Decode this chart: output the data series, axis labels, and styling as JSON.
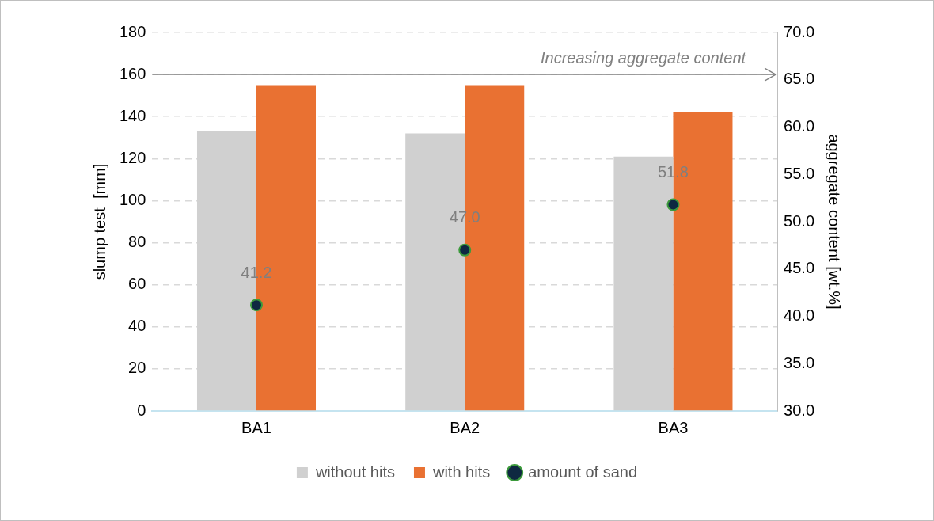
{
  "chart_data": {
    "type": "bar",
    "categories": [
      "BA1",
      "BA2",
      "BA3"
    ],
    "series": [
      {
        "name": "without hits",
        "color": "#d0d0d0",
        "values": [
          133,
          132,
          121
        ]
      },
      {
        "name": "with hits",
        "color": "#e97132",
        "values": [
          155,
          155,
          142
        ]
      },
      {
        "name": "amount of sand",
        "type": "scatter",
        "axis": "y2",
        "color": "#0e2841",
        "values": [
          41.2,
          47.0,
          51.8
        ],
        "value_labels": [
          "41.2",
          "47.0",
          "51.8"
        ]
      }
    ],
    "ylabel": "slump test  [mm]",
    "y2label": "aggregate content [wt.%]",
    "ylim": [
      0,
      180
    ],
    "yticks": [
      0,
      20,
      40,
      60,
      80,
      100,
      120,
      140,
      160,
      180
    ],
    "y2lim": [
      30,
      70
    ],
    "y2ticks": [
      {
        "value": 30,
        "label": "30.0"
      },
      {
        "value": 35,
        "label": "35.0"
      },
      {
        "value": 40,
        "label": "40.0"
      },
      {
        "value": 45,
        "label": "45.0"
      },
      {
        "value": 50,
        "label": "50.0"
      },
      {
        "value": 55,
        "label": "55.0"
      },
      {
        "value": 60,
        "label": "60.0"
      },
      {
        "value": 65,
        "label": "65.0"
      },
      {
        "value": 70,
        "label": "70.0"
      }
    ],
    "ref_lines": [
      {
        "axis": "y",
        "value": 160,
        "label": "Increasing aggregate content",
        "color": "#7f7f7f"
      }
    ],
    "grid": "y",
    "legend": "bottom",
    "marker": "circle"
  }
}
